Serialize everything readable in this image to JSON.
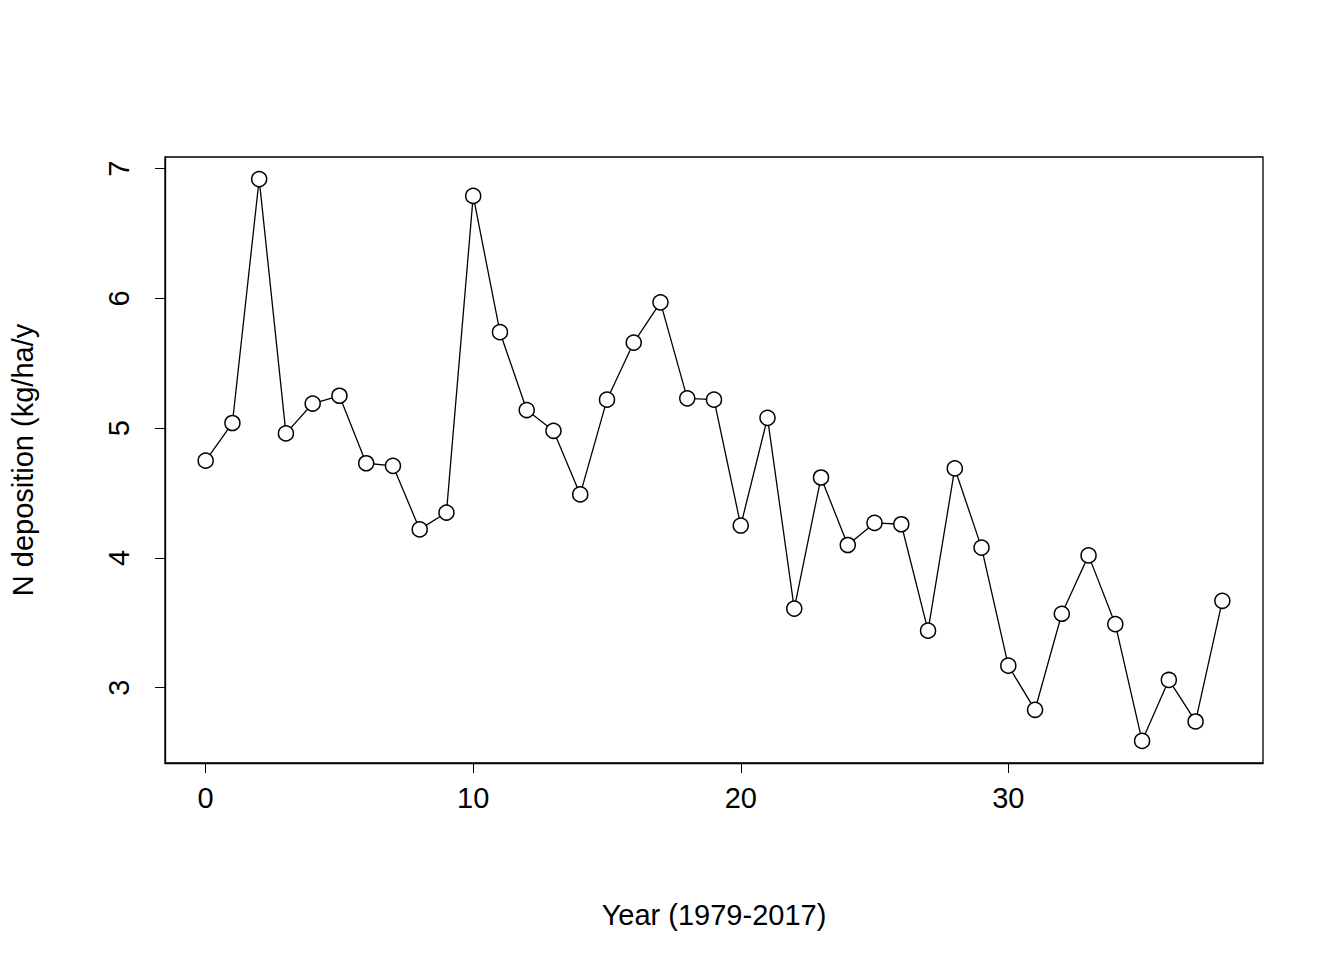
{
  "chart_data": {
    "type": "line",
    "x_label": "Year (1979-2017)",
    "y_label": "N deposition (kg/ha/y",
    "x": [
      0,
      1,
      2,
      3,
      4,
      5,
      6,
      7,
      8,
      9,
      10,
      11,
      12,
      13,
      14,
      15,
      16,
      17,
      18,
      19,
      20,
      21,
      22,
      23,
      24,
      25,
      26,
      27,
      28,
      29,
      30,
      31,
      32,
      33,
      34,
      35,
      36,
      37,
      38
    ],
    "values": [
      4.75,
      5.04,
      6.92,
      4.96,
      5.19,
      5.25,
      4.73,
      4.71,
      4.22,
      4.35,
      6.79,
      5.74,
      5.14,
      4.98,
      4.49,
      5.22,
      5.66,
      5.97,
      5.23,
      5.22,
      4.25,
      5.08,
      3.61,
      4.62,
      4.1,
      4.27,
      4.26,
      3.44,
      4.69,
      4.08,
      3.17,
      2.83,
      3.57,
      4.02,
      3.49,
      2.59,
      3.06,
      2.74,
      3.67
    ],
    "color": "#000000",
    "marker": "circle-open",
    "line_style": "solid",
    "xlim": [
      -1.52,
      39.52
    ],
    "xticks": [
      0,
      10,
      20,
      30
    ],
    "ylim": [
      2.42,
      7.09
    ],
    "yticks": [
      3,
      4,
      5,
      6,
      7
    ],
    "grid": false
  }
}
